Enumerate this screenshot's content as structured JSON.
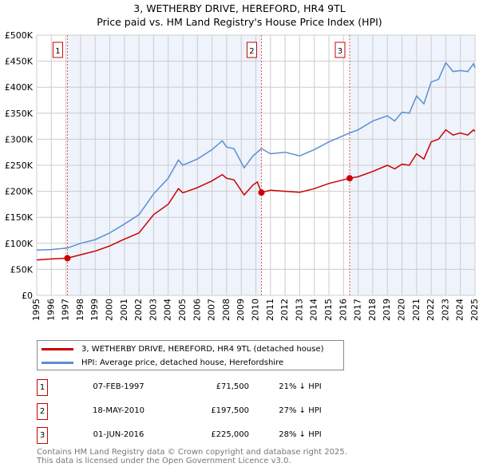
{
  "chart_data": {
    "type": "line",
    "title": "3, WETHERBY DRIVE, HEREFORD, HR4 9TL",
    "subtitle": "Price paid vs. HM Land Registry's House Price Index (HPI)",
    "xlim": [
      1995,
      2025
    ],
    "ylim": [
      0,
      500000
    ],
    "x_ticks": [
      "1995",
      "1996",
      "1997",
      "1998",
      "1999",
      "2000",
      "2001",
      "2002",
      "2003",
      "2004",
      "2005",
      "2006",
      "2007",
      "2008",
      "2009",
      "2010",
      "2011",
      "2012",
      "2013",
      "2014",
      "2015",
      "2016",
      "2017",
      "2018",
      "2019",
      "2020",
      "2021",
      "2022",
      "2023",
      "2024",
      "2025"
    ],
    "y_ticks": [
      {
        "v": 0,
        "label": "£0"
      },
      {
        "v": 50000,
        "label": "£50K"
      },
      {
        "v": 100000,
        "label": "£100K"
      },
      {
        "v": 150000,
        "label": "£150K"
      },
      {
        "v": 200000,
        "label": "£200K"
      },
      {
        "v": 250000,
        "label": "£250K"
      },
      {
        "v": 300000,
        "label": "£300K"
      },
      {
        "v": 350000,
        "label": "£350K"
      },
      {
        "v": 400000,
        "label": "£400K"
      },
      {
        "v": 450000,
        "label": "£450K"
      },
      {
        "v": 500000,
        "label": "£500K"
      }
    ],
    "grid": true,
    "series": [
      {
        "name": "3, WETHERBY DRIVE, HEREFORD, HR4 9TL (detached house)",
        "color": "#cc0000",
        "x": [
          1995,
          1996,
          1997.1,
          1998,
          1999,
          2000,
          2001,
          2002,
          2003,
          2004,
          2004.7,
          2005,
          2006,
          2007,
          2007.7,
          2008,
          2008.5,
          2009.2,
          2009.8,
          2010.1,
          2010.38,
          2011,
          2012,
          2013,
          2014,
          2015,
          2016.42,
          2017,
          2018,
          2019,
          2019.5,
          2020,
          2020.5,
          2021,
          2021.5,
          2022,
          2022.5,
          2023,
          2023.5,
          2024,
          2024.5,
          2024.9,
          2025
        ],
        "y": [
          68000,
          70000,
          71500,
          78000,
          85000,
          95000,
          108000,
          120000,
          155000,
          175000,
          205000,
          197000,
          207000,
          220000,
          232000,
          225000,
          222000,
          193000,
          212000,
          218000,
          197500,
          202000,
          200000,
          198000,
          205000,
          215000,
          225000,
          228000,
          238000,
          250000,
          243000,
          252000,
          250000,
          272000,
          262000,
          295000,
          300000,
          318000,
          308000,
          312000,
          308000,
          318000,
          315000
        ]
      },
      {
        "name": "HPI: Average price, detached house, Herefordshire",
        "color": "#5b8fd4",
        "x": [
          1995,
          1996,
          1997.1,
          1998,
          1999,
          2000,
          2001,
          2002,
          2003,
          2004,
          2004.7,
          2005,
          2006,
          2007,
          2007.7,
          2008,
          2008.5,
          2009.2,
          2009.8,
          2010.38,
          2011,
          2012,
          2013,
          2014,
          2015,
          2016.42,
          2017,
          2018,
          2019,
          2019.5,
          2020,
          2020.5,
          2021,
          2021.5,
          2022,
          2022.5,
          2023,
          2023.5,
          2024,
          2024.5,
          2024.9,
          2025
        ],
        "y": [
          87000,
          88000,
          91000,
          100000,
          107000,
          120000,
          137000,
          155000,
          195000,
          225000,
          260000,
          250000,
          262000,
          280000,
          297000,
          285000,
          282000,
          245000,
          268000,
          282000,
          272000,
          275000,
          268000,
          280000,
          295000,
          312000,
          318000,
          335000,
          345000,
          335000,
          352000,
          350000,
          383000,
          368000,
          410000,
          415000,
          447000,
          430000,
          432000,
          430000,
          445000,
          437000
        ]
      }
    ],
    "sales": [
      {
        "num": "1",
        "x": 1997.1,
        "y": 71500,
        "date": "07-FEB-1997",
        "price": "£71,500",
        "hpi": "21% ↓ HPI"
      },
      {
        "num": "2",
        "x": 2010.38,
        "y": 197500,
        "date": "18-MAY-2010",
        "price": "£197,500",
        "hpi": "27% ↓ HPI"
      },
      {
        "num": "3",
        "x": 2016.42,
        "y": 225000,
        "date": "01-JUN-2016",
        "price": "£225,000",
        "hpi": "28% ↓ HPI"
      }
    ],
    "legend_placement": "below"
  },
  "footer": {
    "line1": "Contains HM Land Registry data © Crown copyright and database right 2025.",
    "line2": "This data is licensed under the Open Government Licence v3.0."
  }
}
